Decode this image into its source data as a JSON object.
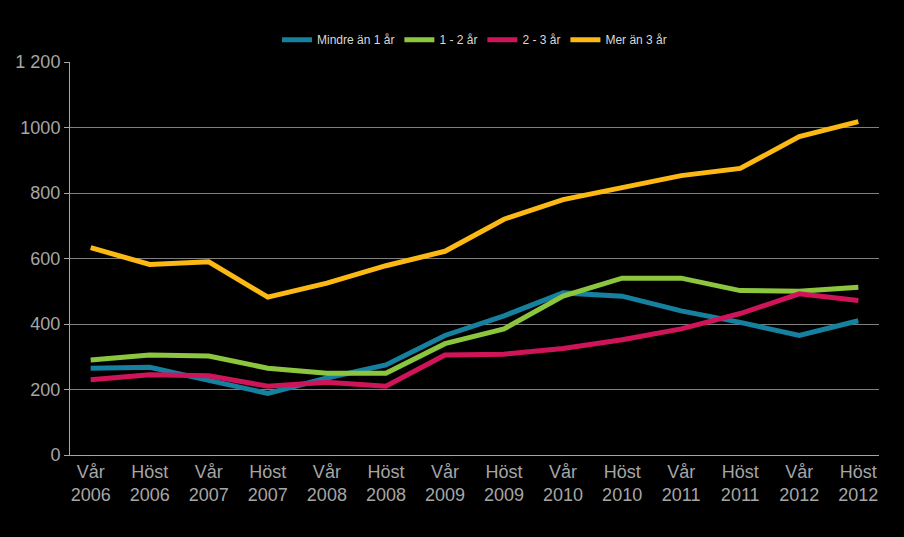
{
  "chart_data": {
    "type": "line",
    "categories": [
      "Vår 2006",
      "Höst 2006",
      "Vår 2007",
      "Höst 2007",
      "Vår 2008",
      "Höst 2008",
      "Vår 2009",
      "Höst 2009",
      "Vår 2010",
      "Höst 2010",
      "Vår 2011",
      "Höst 2011",
      "Vår 2012",
      "Höst 2012"
    ],
    "series": [
      {
        "name": "Mindre än 1 år",
        "color": "#16809f",
        "values": [
          265,
          268,
          228,
          188,
          235,
          275,
          365,
          425,
          495,
          485,
          440,
          405,
          365,
          410
        ]
      },
      {
        "name": "1 - 2 år",
        "color": "#8cc63e",
        "values": [
          290,
          305,
          302,
          265,
          250,
          250,
          340,
          385,
          485,
          540,
          540,
          502,
          500,
          512
        ]
      },
      {
        "name": "2 - 3 år",
        "color": "#d0145a",
        "values": [
          230,
          245,
          242,
          210,
          222,
          210,
          305,
          308,
          325,
          352,
          385,
          432,
          492,
          472
        ]
      },
      {
        "name": "Mer än 3 år",
        "color": "#fdb913",
        "values": [
          633,
          582,
          590,
          482,
          525,
          578,
          622,
          720,
          780,
          815,
          853,
          875,
          972,
          1018
        ]
      }
    ],
    "ylim": [
      0,
      1200
    ],
    "yticks": [
      0,
      200,
      400,
      600,
      800,
      1000,
      {
        "value": 1200,
        "label": "1 200"
      }
    ],
    "grid": true,
    "legend": "top"
  }
}
